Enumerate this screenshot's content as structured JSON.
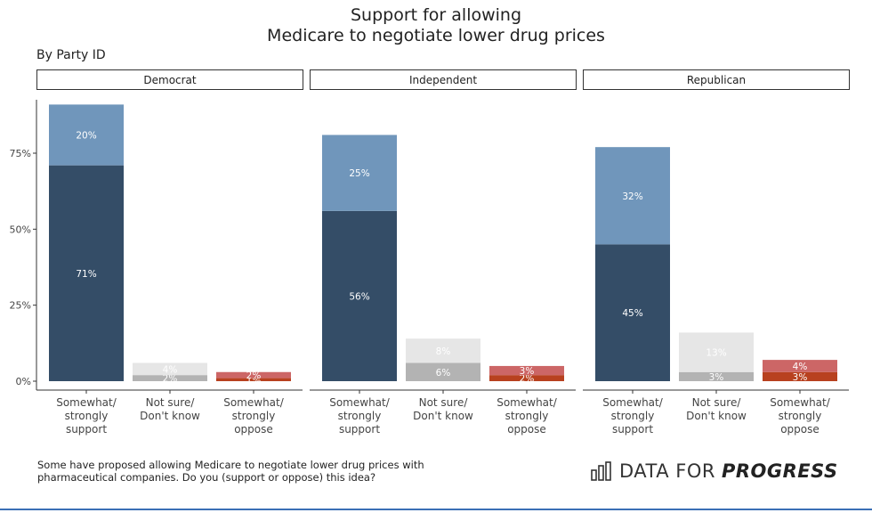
{
  "chart_data": {
    "type": "bar",
    "stacked": true,
    "title": "Support for allowing\nMedicare to negotiate lower drug prices",
    "subtitle": "By Party ID",
    "facets": [
      "Democrat",
      "Independent",
      "Republican"
    ],
    "categories": [
      "Somewhat/\nstrongly\nsupport",
      "Not sure/\nDon't know",
      "Somewhat/\nstrongly\noppose"
    ],
    "y_ticks": [
      "0%",
      "25%",
      "50%",
      "75%"
    ],
    "ylim": [
      0,
      95
    ],
    "grid": false,
    "legend": "none",
    "panels": [
      {
        "facet": "Democrat",
        "bars": [
          {
            "category": "Somewhat/\nstrongly\nsupport",
            "segments": [
              {
                "value": 71,
                "label": "71%",
                "color": "#344d67"
              },
              {
                "value": 20,
                "label": "20%",
                "color": "#7096bb"
              }
            ]
          },
          {
            "category": "Not sure/\nDon't know",
            "segments": [
              {
                "value": 2,
                "label": "2%",
                "color": "#b3b3b3"
              },
              {
                "value": 4,
                "label": "4%",
                "color": "#e6e6e6"
              }
            ]
          },
          {
            "category": "Somewhat/\nstrongly\noppose",
            "segments": [
              {
                "value": 1,
                "label": "1%",
                "color": "#b8411f"
              },
              {
                "value": 2,
                "label": "2%",
                "color": "#cc6666"
              }
            ]
          }
        ]
      },
      {
        "facet": "Independent",
        "bars": [
          {
            "category": "Somewhat/\nstrongly\nsupport",
            "segments": [
              {
                "value": 56,
                "label": "56%",
                "color": "#344d67"
              },
              {
                "value": 25,
                "label": "25%",
                "color": "#7096bb"
              }
            ]
          },
          {
            "category": "Not sure/\nDon't know",
            "segments": [
              {
                "value": 6,
                "label": "6%",
                "color": "#b3b3b3"
              },
              {
                "value": 8,
                "label": "8%",
                "color": "#e6e6e6"
              }
            ]
          },
          {
            "category": "Somewhat/\nstrongly\noppose",
            "segments": [
              {
                "value": 2,
                "label": "2%",
                "color": "#b8411f"
              },
              {
                "value": 3,
                "label": "3%",
                "color": "#cc6666"
              }
            ]
          }
        ]
      },
      {
        "facet": "Republican",
        "bars": [
          {
            "category": "Somewhat/\nstrongly\nsupport",
            "segments": [
              {
                "value": 45,
                "label": "45%",
                "color": "#344d67"
              },
              {
                "value": 32,
                "label": "32%",
                "color": "#7096bb"
              }
            ]
          },
          {
            "category": "Not sure/\nDon't know",
            "segments": [
              {
                "value": 3,
                "label": "3%",
                "color": "#b3b3b3"
              },
              {
                "value": 13,
                "label": "13%",
                "color": "#e6e6e6"
              }
            ]
          },
          {
            "category": "Somewhat/\nstrongly\noppose",
            "segments": [
              {
                "value": 3,
                "label": "3%",
                "color": "#b8411f"
              },
              {
                "value": 4,
                "label": "4%",
                "color": "#cc6666"
              }
            ]
          }
        ]
      }
    ]
  },
  "note": {
    "line1": "Some have proposed allowing Medicare to negotiate lower drug prices with",
    "line2": "pharmaceutical companies. Do you (support or oppose) this idea?"
  },
  "logo": {
    "icon": "bar-chart-icon",
    "text_plain": "DATA FOR",
    "text_bold": "PROGRESS"
  },
  "colors": {
    "rule": "#3b6fb5"
  }
}
